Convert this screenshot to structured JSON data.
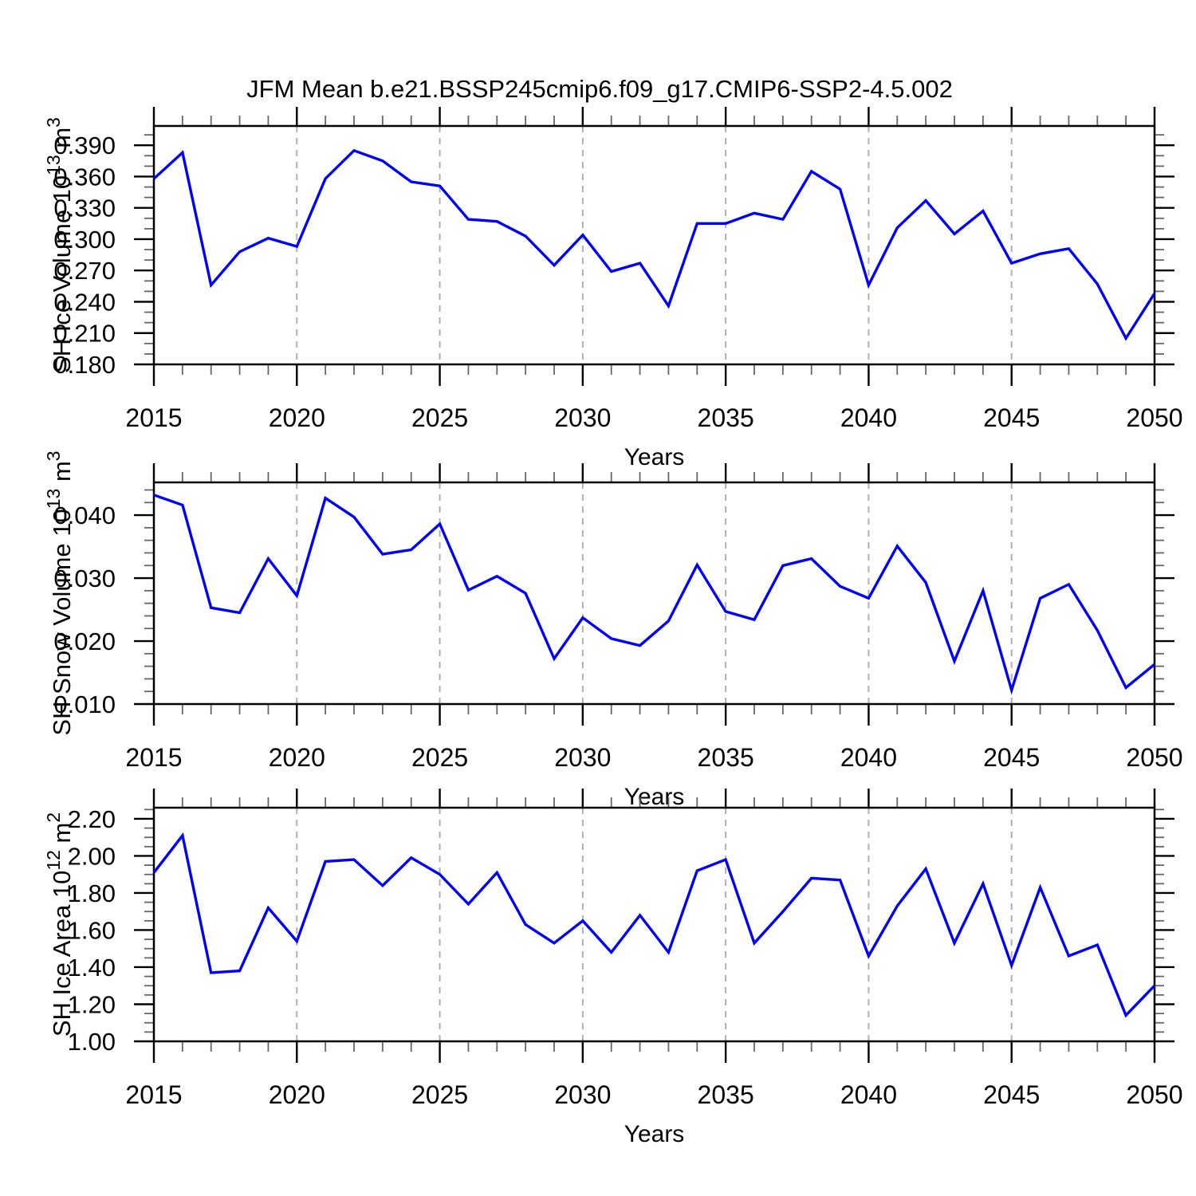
{
  "title": "JFM Mean b.e21.BSSP245cmip6.f09_g17.CMIP6-SSP2-4.5.002",
  "xlabel": "Years",
  "line_color": "#0000ff",
  "grid_color": "#b0b0b0",
  "xtick_labels": [
    "2015",
    "2020",
    "2025",
    "2030",
    "2035",
    "2040",
    "2045",
    "2050"
  ],
  "grid_years": [
    2020,
    2025,
    2030,
    2035,
    2040,
    2045
  ],
  "chart_data": [
    {
      "type": "line",
      "name": "sh-ice-volume",
      "ylabel_parts": [
        "SH Ice Volume 10",
        "13",
        " m",
        "3"
      ],
      "ylabel_plain": "SH Ice Volume 10^13 m^3",
      "xlabel": "Years",
      "legend": "none",
      "grid": "vertical-dashed",
      "xlim": [
        2015,
        2050
      ],
      "ylim": [
        0.18,
        0.4085
      ],
      "ytick_labels": [
        "0.180",
        "0.210",
        "0.240",
        "0.270",
        "0.300",
        "0.330",
        "0.360",
        "0.390"
      ],
      "yminor_step": 0.01,
      "x": [
        2015,
        2016,
        2017,
        2018,
        2019,
        2020,
        2021,
        2022,
        2023,
        2024,
        2025,
        2026,
        2027,
        2028,
        2029,
        2030,
        2031,
        2032,
        2033,
        2034,
        2035,
        2036,
        2037,
        2038,
        2039,
        2040,
        2041,
        2042,
        2043,
        2044,
        2045,
        2046,
        2047,
        2048,
        2049,
        2050
      ],
      "values": [
        0.358,
        0.383,
        0.256,
        0.288,
        0.301,
        0.293,
        0.358,
        0.385,
        0.375,
        0.355,
        0.351,
        0.319,
        0.317,
        0.303,
        0.275,
        0.304,
        0.269,
        0.277,
        0.236,
        0.315,
        0.315,
        0.325,
        0.319,
        0.365,
        0.348,
        0.256,
        0.311,
        0.337,
        0.305,
        0.327,
        0.277,
        0.286,
        0.291,
        0.257,
        0.205,
        0.248
      ]
    },
    {
      "type": "line",
      "name": "sh-snow-volume",
      "ylabel_parts": [
        "SH Snow Volume 10",
        "13",
        " m",
        "3"
      ],
      "ylabel_plain": "SH Snow Volume 10^13 m^3",
      "xlabel": "Years",
      "legend": "none",
      "grid": "vertical-dashed",
      "xlim": [
        2015,
        2050
      ],
      "ylim": [
        0.01,
        0.0452
      ],
      "ytick_labels": [
        "0.010",
        "0.020",
        "0.030",
        "0.040"
      ],
      "yminor_step": 0.002,
      "x": [
        2015,
        2016,
        2017,
        2018,
        2019,
        2020,
        2021,
        2022,
        2023,
        2024,
        2025,
        2026,
        2027,
        2028,
        2029,
        2030,
        2031,
        2032,
        2033,
        2034,
        2035,
        2036,
        2037,
        2038,
        2039,
        2040,
        2041,
        2042,
        2043,
        2044,
        2045,
        2046,
        2047,
        2048,
        2049,
        2050
      ],
      "values": [
        0.0432,
        0.0416,
        0.0253,
        0.0245,
        0.0331,
        0.0272,
        0.0427,
        0.0397,
        0.0338,
        0.0345,
        0.0386,
        0.0281,
        0.0303,
        0.0276,
        0.0172,
        0.0237,
        0.0204,
        0.0193,
        0.0232,
        0.0321,
        0.0247,
        0.0234,
        0.032,
        0.0331,
        0.0287,
        0.0268,
        0.0351,
        0.0293,
        0.0168,
        0.028,
        0.0122,
        0.0268,
        0.029,
        0.0217,
        0.0126,
        0.0163
      ]
    },
    {
      "type": "line",
      "name": "sh-ice-area",
      "ylabel_parts": [
        "SH Ice Area 10",
        "12",
        " m",
        "2"
      ],
      "ylabel_plain": "SH Ice Area 10^12 m^2",
      "xlabel": "Years",
      "legend": "none",
      "grid": "vertical-dashed",
      "xlim": [
        2015,
        2050
      ],
      "ylim": [
        1.0,
        2.26
      ],
      "ytick_labels": [
        "1.00",
        "1.20",
        "1.40",
        "1.60",
        "1.80",
        "2.00",
        "2.20"
      ],
      "yminor_step": 0.05,
      "x": [
        2015,
        2016,
        2017,
        2018,
        2019,
        2020,
        2021,
        2022,
        2023,
        2024,
        2025,
        2026,
        2027,
        2028,
        2029,
        2030,
        2031,
        2032,
        2033,
        2034,
        2035,
        2036,
        2037,
        2038,
        2039,
        2040,
        2041,
        2042,
        2043,
        2044,
        2045,
        2046,
        2047,
        2048,
        2049,
        2050
      ],
      "values": [
        1.91,
        2.11,
        1.37,
        1.38,
        1.72,
        1.54,
        1.97,
        1.98,
        1.84,
        1.99,
        1.9,
        1.74,
        1.91,
        1.63,
        1.53,
        1.65,
        1.48,
        1.68,
        1.48,
        1.92,
        1.98,
        1.53,
        1.7,
        1.88,
        1.87,
        1.46,
        1.73,
        1.93,
        1.53,
        1.85,
        1.41,
        1.83,
        1.46,
        1.52,
        1.14,
        1.3
      ]
    }
  ]
}
